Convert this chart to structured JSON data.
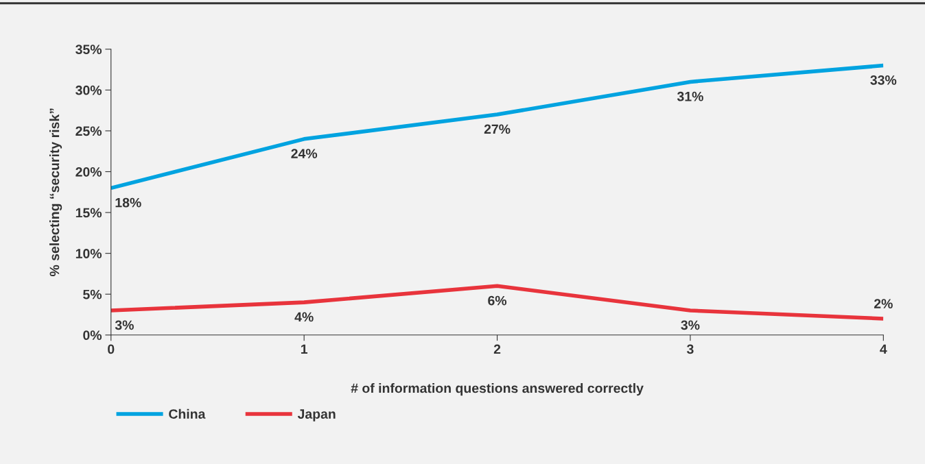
{
  "chart_data": {
    "type": "line",
    "xlabel": "# of information questions answered correctly",
    "ylabel": "% selecting “security risk”",
    "x": [
      0,
      1,
      2,
      3,
      4
    ],
    "series": [
      {
        "name": "China",
        "color": "#00a3e0",
        "values": [
          18,
          24,
          27,
          31,
          33
        ],
        "value_labels": [
          "18%",
          "24%",
          "27%",
          "31%",
          "33%"
        ]
      },
      {
        "name": "Japan",
        "color": "#e8343c",
        "values": [
          3,
          4,
          6,
          3,
          2
        ],
        "value_labels": [
          "3%",
          "4%",
          "6%",
          "3%",
          "2%"
        ]
      }
    ],
    "xlim": [
      0,
      4
    ],
    "xticks": [
      0,
      1,
      2,
      3,
      4
    ],
    "ylim": [
      0,
      35
    ],
    "yticks": [
      {
        "value": 0,
        "label": "0%"
      },
      {
        "value": 5,
        "label": "5%"
      },
      {
        "value": 10,
        "label": "10%"
      },
      {
        "value": 15,
        "label": "15%"
      },
      {
        "value": 20,
        "label": "20%"
      },
      {
        "value": 25,
        "label": "25%"
      },
      {
        "value": 30,
        "label": "30%"
      },
      {
        "value": 35,
        "label": "35%"
      }
    ],
    "grid": false,
    "legend": "bottom left",
    "marker": "none",
    "line_style": "solid"
  }
}
